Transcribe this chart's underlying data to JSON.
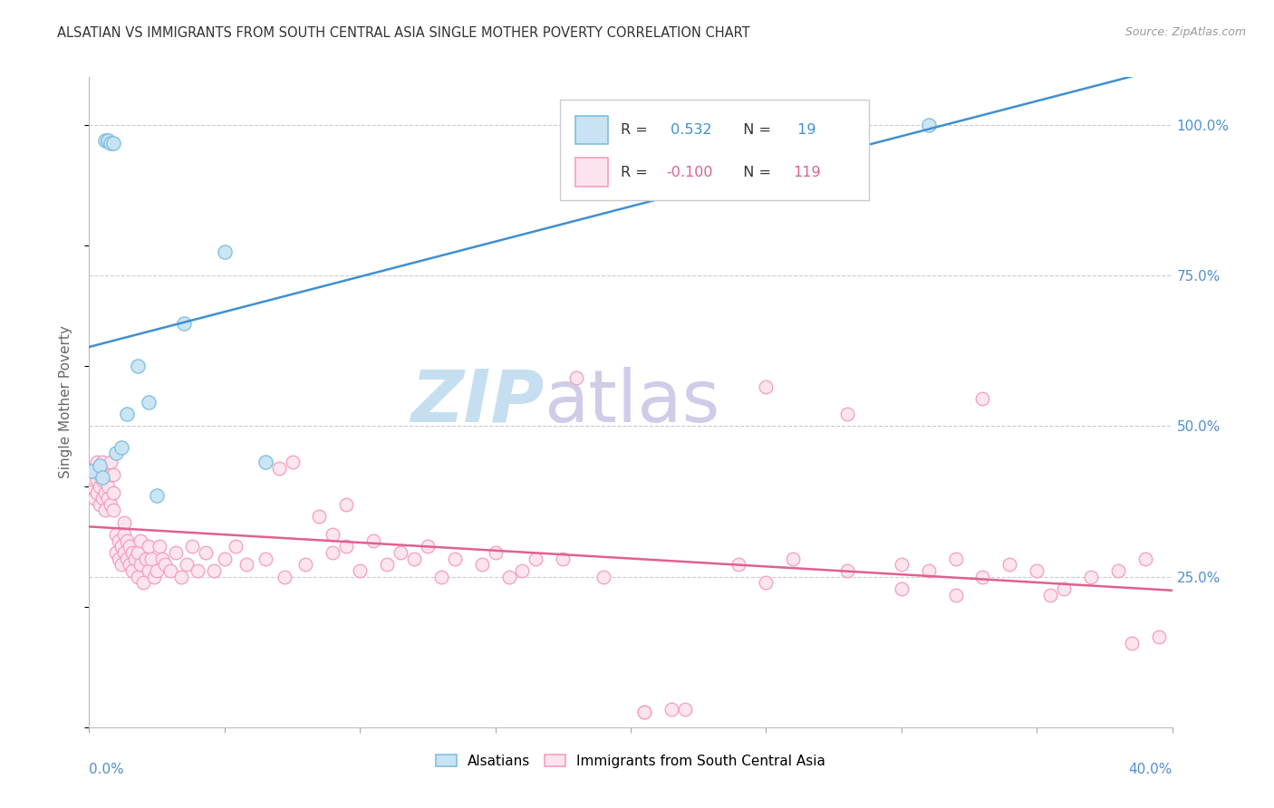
{
  "title": "ALSATIAN VS IMMIGRANTS FROM SOUTH CENTRAL ASIA SINGLE MOTHER POVERTY CORRELATION CHART",
  "source": "Source: ZipAtlas.com",
  "ylabel": "Single Mother Poverty",
  "r_alsatian": 0.532,
  "n_alsatian": 19,
  "r_immigrants": -0.1,
  "n_immigrants": 119,
  "color_alsatian_edge": "#7fbfdf",
  "color_alsatian_face": "#c8e4f4",
  "color_immigrants_edge": "#f4a0bc",
  "color_immigrants_face": "#fce4ef",
  "color_line_alsatian": "#4090d0",
  "color_line_immigrants": "#e06090",
  "color_r_alsatian": "#4090d0",
  "color_r_immigrants": "#e06090",
  "color_axis_labels": "#5090d0",
  "color_grid": "#cccccc",
  "color_title": "#333333",
  "color_source": "#999999",
  "watermark_zip_color": "#c8dff0",
  "watermark_atlas_color": "#c8c8e8",
  "xmin": 0.0,
  "xmax": 0.4,
  "ymin": 0.0,
  "ymax": 1.08,
  "yticks": [
    0.25,
    0.5,
    0.75,
    1.0
  ],
  "ytick_labels": [
    "25.0%",
    "50.0%",
    "75.0%",
    "100.0%"
  ],
  "alsatian_x": [
    0.001,
    0.004,
    0.005,
    0.006,
    0.007,
    0.007,
    0.008,
    0.009,
    0.01,
    0.012,
    0.014,
    0.018,
    0.022,
    0.025,
    0.035,
    0.05,
    0.065,
    0.235,
    0.31
  ],
  "alsatian_y": [
    0.425,
    0.435,
    0.415,
    0.975,
    0.975,
    0.975,
    0.97,
    0.97,
    0.455,
    0.465,
    0.52,
    0.6,
    0.54,
    0.385,
    0.67,
    0.79,
    0.44,
    0.975,
    1.0
  ],
  "imm_x": [
    0.001,
    0.001,
    0.002,
    0.002,
    0.002,
    0.003,
    0.003,
    0.003,
    0.004,
    0.004,
    0.004,
    0.005,
    0.005,
    0.005,
    0.006,
    0.006,
    0.006,
    0.007,
    0.007,
    0.007,
    0.008,
    0.008,
    0.008,
    0.009,
    0.009,
    0.009,
    0.01,
    0.01,
    0.011,
    0.011,
    0.012,
    0.012,
    0.013,
    0.013,
    0.013,
    0.014,
    0.014,
    0.015,
    0.015,
    0.016,
    0.016,
    0.017,
    0.018,
    0.018,
    0.019,
    0.019,
    0.02,
    0.021,
    0.022,
    0.022,
    0.023,
    0.024,
    0.025,
    0.026,
    0.027,
    0.028,
    0.03,
    0.032,
    0.034,
    0.036,
    0.038,
    0.04,
    0.043,
    0.046,
    0.05,
    0.054,
    0.058,
    0.065,
    0.072,
    0.08,
    0.09,
    0.1,
    0.11,
    0.12,
    0.13,
    0.145,
    0.16,
    0.175,
    0.19,
    0.205,
    0.22,
    0.24,
    0.26,
    0.28,
    0.3,
    0.31,
    0.32,
    0.33,
    0.34,
    0.35,
    0.36,
    0.37,
    0.38,
    0.39,
    0.205,
    0.215,
    0.18,
    0.28,
    0.33,
    0.25,
    0.075,
    0.07,
    0.085,
    0.09,
    0.095,
    0.105,
    0.115,
    0.125,
    0.135,
    0.15,
    0.165,
    0.095,
    0.155,
    0.25,
    0.3,
    0.32,
    0.355,
    0.385,
    0.395
  ],
  "imm_y": [
    0.42,
    0.4,
    0.38,
    0.43,
    0.41,
    0.39,
    0.44,
    0.41,
    0.42,
    0.4,
    0.37,
    0.38,
    0.41,
    0.44,
    0.36,
    0.39,
    0.42,
    0.38,
    0.4,
    0.43,
    0.42,
    0.37,
    0.44,
    0.36,
    0.39,
    0.42,
    0.29,
    0.32,
    0.28,
    0.31,
    0.3,
    0.27,
    0.32,
    0.29,
    0.34,
    0.28,
    0.31,
    0.27,
    0.3,
    0.26,
    0.29,
    0.28,
    0.25,
    0.29,
    0.27,
    0.31,
    0.24,
    0.28,
    0.3,
    0.26,
    0.28,
    0.25,
    0.26,
    0.3,
    0.28,
    0.27,
    0.26,
    0.29,
    0.25,
    0.27,
    0.3,
    0.26,
    0.29,
    0.26,
    0.28,
    0.3,
    0.27,
    0.28,
    0.25,
    0.27,
    0.29,
    0.26,
    0.27,
    0.28,
    0.25,
    0.27,
    0.26,
    0.28,
    0.25,
    0.025,
    0.03,
    0.27,
    0.28,
    0.26,
    0.27,
    0.26,
    0.28,
    0.25,
    0.27,
    0.26,
    0.23,
    0.25,
    0.26,
    0.28,
    0.025,
    0.03,
    0.58,
    0.52,
    0.545,
    0.565,
    0.44,
    0.43,
    0.35,
    0.32,
    0.3,
    0.31,
    0.29,
    0.3,
    0.28,
    0.29,
    0.28,
    0.37,
    0.25,
    0.24,
    0.23,
    0.22,
    0.22,
    0.14,
    0.15
  ]
}
